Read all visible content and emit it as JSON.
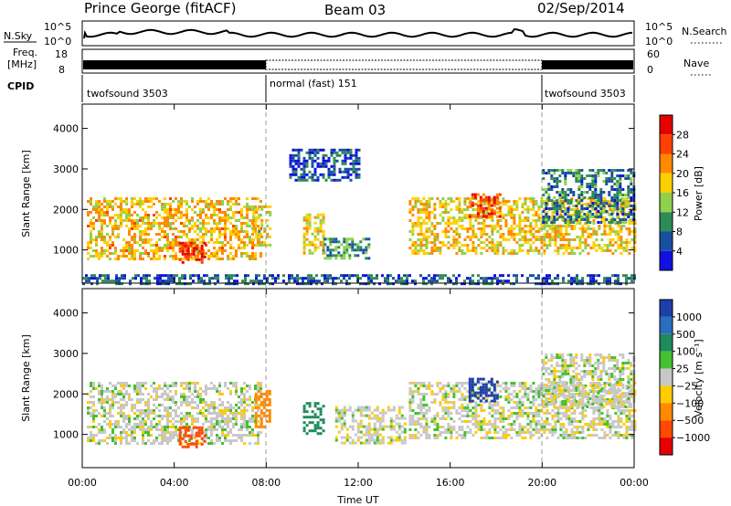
{
  "header": {
    "station": "Prince George (fitACF)",
    "beam": "Beam 03",
    "date": "02/Sep/2014"
  },
  "top_strip": {
    "nsky": {
      "label": "N.Sky",
      "top_tick": "10^5",
      "bottom_tick": "10^0"
    },
    "nsearch": {
      "label": "N.Search",
      "top_tick": "10^5",
      "bottom_tick": "10^0"
    },
    "freq": {
      "label_line1": "Freq.",
      "label_line2": "[MHz]",
      "top_tick": "18",
      "bottom_tick": "8"
    },
    "nave": {
      "label": "Nave",
      "top_tick": "60",
      "bottom_tick": "0"
    },
    "cpid": {
      "label": "CPID",
      "modes": [
        {
          "name": "twofsound 3503",
          "start": "00:00",
          "end": "08:00"
        },
        {
          "name": "normal (fast) 151",
          "start": "08:00",
          "end": "20:00"
        },
        {
          "name": "twofsound 3503",
          "start": "20:00",
          "end": "24:00"
        }
      ]
    }
  },
  "colorbars": {
    "power": {
      "title": "Power [dB]",
      "ticks": [
        "28",
        "24",
        "20",
        "16",
        "12",
        "8",
        "4"
      ],
      "colors": [
        "#e60000",
        "#ff4000",
        "#ff8a00",
        "#ffd000",
        "#8fd14f",
        "#2e8b57",
        "#1a4fa0",
        "#1010e0"
      ]
    },
    "velocity": {
      "title": "Velocity [m s⁻¹]",
      "ticks": [
        "1000",
        "500",
        "100",
        "25",
        "−25",
        "−100",
        "−500",
        "−1000"
      ],
      "colors": [
        "#1f3fa8",
        "#2a6ec0",
        "#1f8a5a",
        "#44c030",
        "#c8c8c8",
        "#ffcc00",
        "#ff8a00",
        "#ff4a00",
        "#e60000"
      ]
    }
  },
  "chart_data": [
    {
      "type": "heatmap",
      "title": "",
      "xlabel": "Time UT",
      "ylabel": "Slant Range [km]",
      "x_ticks": [
        "00:00",
        "04:00",
        "08:00",
        "12:00",
        "16:00",
        "20:00",
        "00:00"
      ],
      "y_ticks": [
        "1000",
        "2000",
        "3000",
        "4000"
      ],
      "xlim_hours": [
        0,
        24
      ],
      "ylim_km": [
        180,
        4600
      ],
      "value_label": "Power [dB]",
      "value_range": [
        0,
        30
      ],
      "echo_regions": [
        {
          "t0": 0.2,
          "t1": 7.8,
          "r0": 800,
          "r1": 2300,
          "level": 18
        },
        {
          "t0": 4.2,
          "t1": 5.3,
          "r0": 700,
          "r1": 1200,
          "level": 27
        },
        {
          "t0": 7.4,
          "t1": 8.2,
          "r0": 1100,
          "r1": 2100,
          "level": 16
        },
        {
          "t0": 9.6,
          "t1": 10.5,
          "r0": 900,
          "r1": 1900,
          "level": 16
        },
        {
          "t0": 10.5,
          "t1": 12.5,
          "r0": 800,
          "r1": 1300,
          "level": 10
        },
        {
          "t0": 9.0,
          "t1": 12.0,
          "r0": 2700,
          "r1": 3500,
          "level": 5
        },
        {
          "t0": 14.2,
          "t1": 24.0,
          "r0": 900,
          "r1": 2300,
          "level": 17
        },
        {
          "t0": 16.8,
          "t1": 18.2,
          "r0": 1800,
          "r1": 2400,
          "level": 24
        },
        {
          "t0": 20.0,
          "t1": 24.0,
          "r0": 1700,
          "r1": 3000,
          "level": 8
        },
        {
          "t0": 0.0,
          "t1": 24.0,
          "r0": 180,
          "r1": 400,
          "level": 6
        }
      ]
    },
    {
      "type": "heatmap",
      "title": "",
      "xlabel": "Time UT",
      "ylabel": "Slant Range [km]",
      "x_ticks": [
        "00:00",
        "04:00",
        "08:00",
        "12:00",
        "16:00",
        "20:00",
        "00:00"
      ],
      "y_ticks": [
        "1000",
        "2000",
        "3000",
        "4000"
      ],
      "xlim_hours": [
        0,
        24
      ],
      "ylim_km": [
        180,
        4600
      ],
      "value_label": "Velocity [m s⁻¹]",
      "value_range": [
        -1000,
        1000
      ],
      "echo_regions": [
        {
          "t0": 0.2,
          "t1": 7.8,
          "r0": 800,
          "r1": 2300,
          "level": 0
        },
        {
          "t0": 4.2,
          "t1": 5.3,
          "r0": 700,
          "r1": 1200,
          "level": -500
        },
        {
          "t0": 7.5,
          "t1": 8.1,
          "r0": 1200,
          "r1": 2100,
          "level": -300
        },
        {
          "t0": 9.6,
          "t1": 10.5,
          "r0": 1000,
          "r1": 1800,
          "level": 200
        },
        {
          "t0": 11.0,
          "t1": 14.0,
          "r0": 800,
          "r1": 1700,
          "level": 0
        },
        {
          "t0": 14.2,
          "t1": 24.0,
          "r0": 900,
          "r1": 2300,
          "level": 0
        },
        {
          "t0": 16.8,
          "t1": 18.0,
          "r0": 1800,
          "r1": 2400,
          "level": 800
        },
        {
          "t0": 20.0,
          "t1": 24.0,
          "r0": 1700,
          "r1": 3000,
          "level": 0
        }
      ]
    }
  ]
}
